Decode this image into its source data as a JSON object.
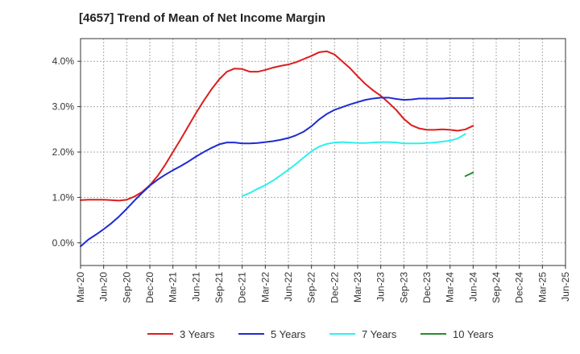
{
  "chart_data": {
    "type": "line",
    "title": "[4657]  Trend of Mean of Net Income Margin",
    "xlabel": "",
    "ylabel": "",
    "x_ticks": [
      "Mar-20",
      "Jun-20",
      "Sep-20",
      "Dec-20",
      "Mar-21",
      "Jun-21",
      "Sep-21",
      "Dec-21",
      "Mar-22",
      "Jun-22",
      "Sep-22",
      "Dec-22",
      "Mar-23",
      "Jun-23",
      "Sep-23",
      "Dec-23",
      "Mar-24",
      "Jun-24",
      "Sep-24",
      "Dec-24",
      "Mar-25",
      "Jun-25"
    ],
    "y_ticks": [
      "0.0%",
      "1.0%",
      "2.0%",
      "3.0%",
      "4.0%"
    ],
    "ylim": [
      -0.5,
      4.5
    ],
    "grid": true,
    "legend_position": "bottom",
    "series": [
      {
        "name": "3 Years",
        "color": "#dd1c1c",
        "start_index": 0,
        "values": [
          0.94,
          0.95,
          0.95,
          0.95,
          0.94,
          0.93,
          0.95,
          1.02,
          1.12,
          1.27,
          1.47,
          1.72,
          2.0,
          2.28,
          2.57,
          2.86,
          3.13,
          3.38,
          3.6,
          3.77,
          3.84,
          3.83,
          3.77,
          3.77,
          3.81,
          3.86,
          3.9,
          3.93,
          3.98,
          4.05,
          4.12,
          4.2,
          4.22,
          4.15,
          4.0,
          3.85,
          3.67,
          3.5,
          3.36,
          3.24,
          3.09,
          2.93,
          2.73,
          2.59,
          2.52,
          2.49,
          2.49,
          2.5,
          2.49,
          2.47,
          2.5,
          2.58
        ]
      },
      {
        "name": "5 Years",
        "color": "#1f2bd0",
        "start_index": 0,
        "values": [
          -0.08,
          0.07,
          0.18,
          0.3,
          0.43,
          0.58,
          0.75,
          0.93,
          1.1,
          1.26,
          1.39,
          1.5,
          1.6,
          1.69,
          1.79,
          1.9,
          2.0,
          2.09,
          2.17,
          2.21,
          2.21,
          2.19,
          2.19,
          2.2,
          2.22,
          2.24,
          2.27,
          2.31,
          2.37,
          2.45,
          2.57,
          2.72,
          2.84,
          2.93,
          2.99,
          3.05,
          3.1,
          3.15,
          3.18,
          3.2,
          3.2,
          3.17,
          3.15,
          3.16,
          3.18,
          3.18,
          3.18,
          3.18,
          3.19,
          3.19,
          3.19,
          3.19
        ]
      },
      {
        "name": "7 Years",
        "color": "#2ef0ef",
        "start_index": 21,
        "values": [
          1.03,
          1.1,
          1.19,
          1.27,
          1.37,
          1.49,
          1.61,
          1.74,
          1.88,
          2.02,
          2.12,
          2.18,
          2.21,
          2.22,
          2.21,
          2.2,
          2.2,
          2.21,
          2.22,
          2.22,
          2.21,
          2.19,
          2.19,
          2.19,
          2.2,
          2.21,
          2.23,
          2.25,
          2.3,
          2.4
        ]
      },
      {
        "name": "10 Years",
        "color": "#2a8a2a",
        "start_index": 50,
        "values": [
          1.47,
          1.55
        ]
      }
    ]
  }
}
